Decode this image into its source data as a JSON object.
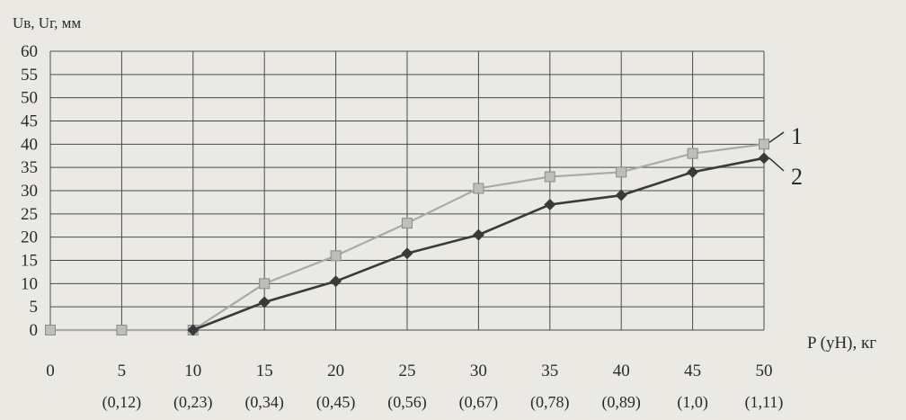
{
  "chart_data": {
    "type": "line",
    "ylabel": "Uв, Uг, мм",
    "xlabel": "P (уН), кг",
    "x": [
      0,
      5,
      10,
      15,
      20,
      25,
      30,
      35,
      40,
      45,
      50
    ],
    "x_secondary_labels": [
      "",
      "(0,12)",
      "(0,23)",
      "(0,34)",
      "(0,45)",
      "(0,56)",
      "(0,67)",
      "(0,78)",
      "(0,89)",
      "(1,0)",
      "(1,11)"
    ],
    "y_ticks": [
      0,
      5,
      10,
      15,
      20,
      25,
      30,
      35,
      40,
      45,
      50,
      55,
      60
    ],
    "ylim": [
      0,
      60
    ],
    "xlim": [
      0,
      50
    ],
    "grid": true,
    "series": [
      {
        "name": "1",
        "marker": "square",
        "color": "#a9a9a9",
        "values": [
          0,
          0,
          0,
          10,
          16,
          23,
          30.5,
          33,
          34,
          38,
          40
        ]
      },
      {
        "name": "2",
        "marker": "diamond",
        "color": "#3a3a3a",
        "values": [
          null,
          null,
          0,
          6,
          10.5,
          16.5,
          20.5,
          27,
          29,
          34,
          37
        ]
      }
    ]
  }
}
